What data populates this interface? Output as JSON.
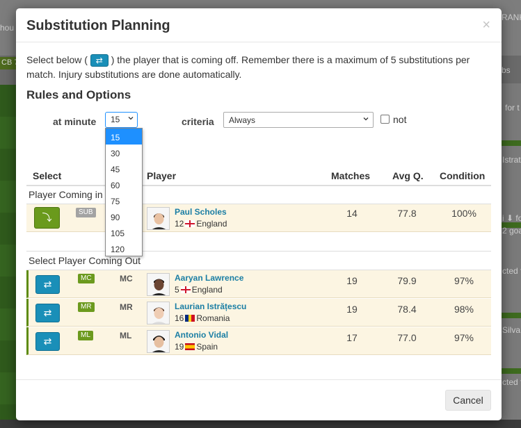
{
  "background": {
    "top_left_text": "hou",
    "top_right_text": "RANK",
    "strip_text": "CB 7",
    "right_subs_text": "bs",
    "right_snippets": [
      "for t",
      "Istrat",
      "i ⬇ fo",
      "2 goa",
      "cted f",
      "Silva",
      "cted f"
    ]
  },
  "modal": {
    "title": "Substitution Planning",
    "close_glyph": "×",
    "intro_before": "Select below (",
    "intro_icon": "⇄",
    "intro_after": ") the player that is coming off. Remember there is a maximum of 5 substitutions per match. Injury substitutions are done automatically.",
    "section_title": "Rules and Options",
    "options": {
      "minute_label": "at minute",
      "minute_value": "15",
      "minute_choices": [
        "15",
        "30",
        "45",
        "60",
        "75",
        "90",
        "105",
        "120"
      ],
      "criteria_label": "criteria",
      "criteria_value": "Always",
      "not_label": "not"
    },
    "table": {
      "headers": {
        "select": "Select",
        "player": "Player",
        "matches": "Matches",
        "avg_q": "Avg Q.",
        "condition": "Condition"
      },
      "coming_in": {
        "label": "Player Coming in",
        "button_icon": "⤵",
        "badge": "SUB",
        "name": "Paul Scholes",
        "number": "12",
        "country": "England",
        "matches": "14",
        "avg_q": "77.8",
        "condition": "100%"
      },
      "coming_out_label": "Select Player Coming Out",
      "coming_out": [
        {
          "button_icon": "⇄",
          "badge": "MC",
          "position": "MC",
          "name": "Aaryan Lawrence",
          "number": "5",
          "country": "England",
          "matches": "19",
          "avg_q": "79.9",
          "condition": "97%"
        },
        {
          "button_icon": "⇄",
          "badge": "MR",
          "position": "MR",
          "name": "Laurian Istrățescu",
          "number": "16",
          "country": "Romania",
          "matches": "19",
          "avg_q": "78.4",
          "condition": "98%"
        },
        {
          "button_icon": "⇄",
          "badge": "ML",
          "position": "ML",
          "name": "Antonio Vidal",
          "number": "19",
          "country": "Spain",
          "matches": "17",
          "avg_q": "77.0",
          "condition": "97%"
        }
      ]
    },
    "cancel_label": "Cancel"
  }
}
